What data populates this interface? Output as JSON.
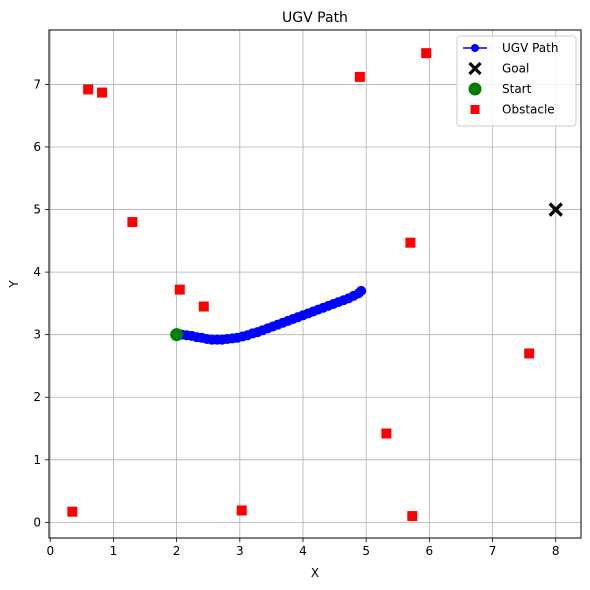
{
  "chart_data": {
    "type": "scatter",
    "title": "UGV Path",
    "xlabel": "X",
    "ylabel": "Y",
    "xlim": [
      -0.02,
      8.4
    ],
    "ylim": [
      -0.25,
      7.87
    ],
    "xticks": [
      0,
      1,
      2,
      3,
      4,
      5,
      6,
      7,
      8
    ],
    "yticks": [
      0,
      1,
      2,
      3,
      4,
      5,
      6,
      7
    ],
    "grid": true,
    "legend_position": "top-right",
    "colors": {
      "path": "#0000ff",
      "goal": "#000000",
      "start": "#008000",
      "obstacle": "#ff0000",
      "grid": "#b0b0b0"
    },
    "series": [
      {
        "name": "UGV Path",
        "kind": "line-marker",
        "points": [
          [
            2.0,
            3.0
          ],
          [
            2.08,
            3.0
          ],
          [
            2.16,
            2.99
          ],
          [
            2.24,
            2.98
          ],
          [
            2.32,
            2.96
          ],
          [
            2.4,
            2.95
          ],
          [
            2.48,
            2.93
          ],
          [
            2.56,
            2.92
          ],
          [
            2.64,
            2.92
          ],
          [
            2.72,
            2.92
          ],
          [
            2.8,
            2.93
          ],
          [
            2.88,
            2.94
          ],
          [
            2.96,
            2.95
          ],
          [
            3.04,
            2.97
          ],
          [
            3.12,
            2.99
          ],
          [
            3.2,
            3.02
          ],
          [
            3.28,
            3.04
          ],
          [
            3.36,
            3.07
          ],
          [
            3.44,
            3.1
          ],
          [
            3.52,
            3.13
          ],
          [
            3.6,
            3.16
          ],
          [
            3.68,
            3.19
          ],
          [
            3.76,
            3.22
          ],
          [
            3.84,
            3.25
          ],
          [
            3.92,
            3.28
          ],
          [
            4.0,
            3.31
          ],
          [
            4.08,
            3.34
          ],
          [
            4.16,
            3.37
          ],
          [
            4.24,
            3.4
          ],
          [
            4.32,
            3.43
          ],
          [
            4.4,
            3.46
          ],
          [
            4.48,
            3.49
          ],
          [
            4.56,
            3.52
          ],
          [
            4.64,
            3.55
          ],
          [
            4.72,
            3.58
          ],
          [
            4.8,
            3.62
          ],
          [
            4.88,
            3.66
          ],
          [
            4.92,
            3.7
          ]
        ]
      },
      {
        "name": "Goal",
        "kind": "marker-x",
        "points": [
          [
            8.0,
            5.0
          ]
        ]
      },
      {
        "name": "Start",
        "kind": "marker-circle",
        "points": [
          [
            2.0,
            3.0
          ]
        ]
      },
      {
        "name": "Obstacle",
        "kind": "marker-square",
        "points": [
          [
            0.6,
            6.92
          ],
          [
            0.82,
            6.87
          ],
          [
            1.3,
            4.8
          ],
          [
            2.05,
            3.72
          ],
          [
            2.43,
            3.45
          ],
          [
            4.9,
            7.12
          ],
          [
            5.95,
            7.5
          ],
          [
            5.7,
            4.47
          ],
          [
            7.58,
            2.7
          ],
          [
            5.32,
            1.42
          ],
          [
            0.35,
            0.17
          ],
          [
            3.03,
            0.19
          ],
          [
            5.73,
            0.1
          ]
        ]
      }
    ]
  }
}
